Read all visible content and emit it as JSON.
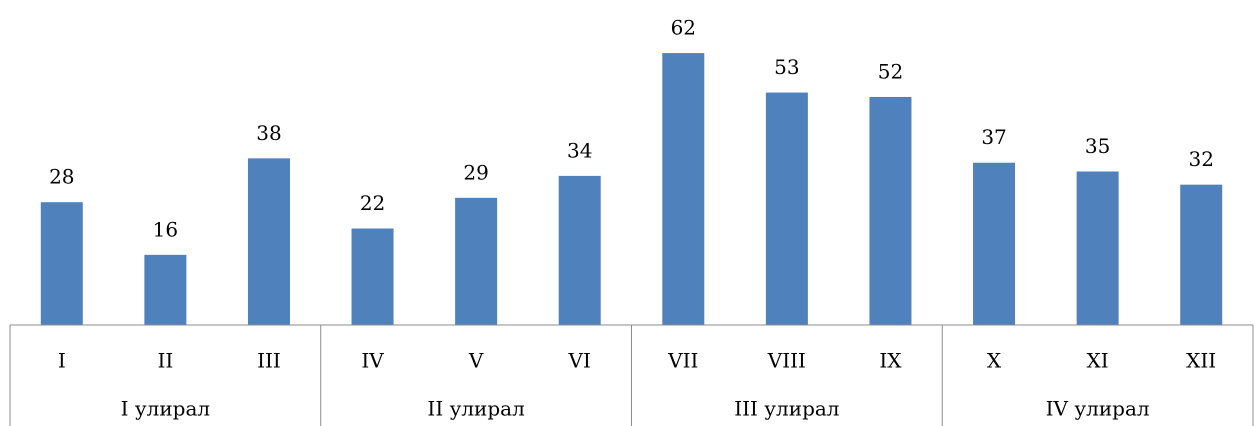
{
  "chart_data": {
    "type": "bar",
    "categories": [
      "I",
      "II",
      "III",
      "IV",
      "V",
      "VI",
      "VII",
      "VIII",
      "IX",
      "X",
      "XI",
      "XII"
    ],
    "groups": [
      "I улирал",
      "II улирал",
      "III улирал",
      "IV улирал"
    ],
    "values": [
      28,
      16,
      38,
      22,
      29,
      34,
      62,
      53,
      52,
      37,
      35,
      32
    ],
    "color": "#4f81bd",
    "ylim": [
      0,
      70
    ]
  }
}
